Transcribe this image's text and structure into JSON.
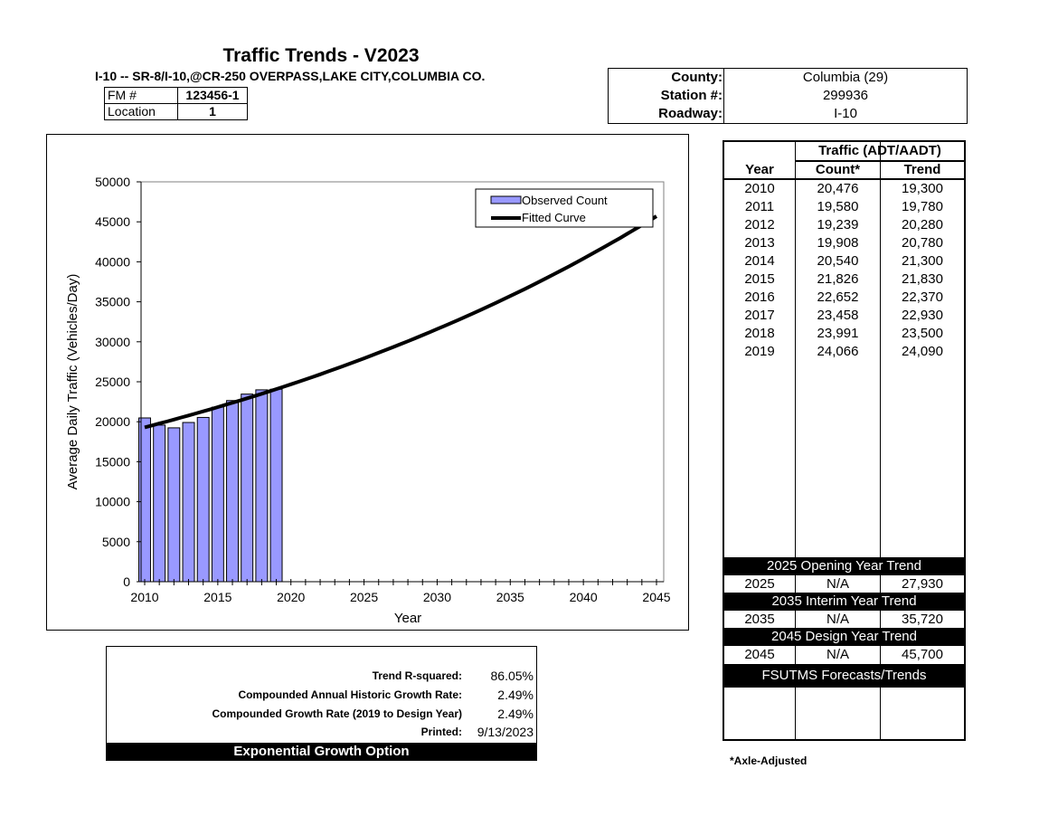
{
  "header": {
    "title": "Traffic Trends - V2023",
    "subtitle": "I-10 -- SR-8/I-10,@CR-250 OVERPASS,LAKE CITY,COLUMBIA CO.",
    "fm_label": "FM #",
    "fm_value": "123456-1",
    "location_label": "Location",
    "location_value": "1"
  },
  "info": {
    "county_label": "County:",
    "county_value": "Columbia (29)",
    "station_label": "Station #:",
    "station_value": "299936",
    "roadway_label": "Roadway:",
    "roadway_value": "I-10"
  },
  "chart_data": {
    "type": "bar",
    "xlabel": "Year",
    "ylabel": "Average Daily Traffic (Vehicles/Day)",
    "xlim": [
      2010,
      2045
    ],
    "ylim": [
      0,
      50000
    ],
    "x_ticks": [
      2010,
      2015,
      2020,
      2025,
      2030,
      2035,
      2040,
      2045
    ],
    "y_ticks": [
      0,
      5000,
      10000,
      15000,
      20000,
      25000,
      30000,
      35000,
      40000,
      45000,
      50000
    ],
    "legend_position": "top-right",
    "series": [
      {
        "name": "Observed Count",
        "type": "bar",
        "color": "#9999ff",
        "x": [
          2010,
          2011,
          2012,
          2013,
          2014,
          2015,
          2016,
          2017,
          2018,
          2019
        ],
        "values": [
          20476,
          19580,
          19239,
          19908,
          20540,
          21826,
          22652,
          23458,
          23991,
          24066
        ]
      },
      {
        "name": "Fitted Curve",
        "type": "line",
        "color": "#000000",
        "x": [
          2010,
          2015,
          2020,
          2025,
          2030,
          2035,
          2040,
          2045
        ],
        "values": [
          19300,
          21830,
          24680,
          27930,
          31590,
          35720,
          40400,
          45700
        ]
      }
    ]
  },
  "table": {
    "year_header": "Year",
    "traffic_header": "Traffic (ADT/AADT)",
    "count_header": "Count*",
    "trend_header": "Trend",
    "rows": [
      {
        "year": "2010",
        "count": "20,476",
        "trend": "19,300"
      },
      {
        "year": "2011",
        "count": "19,580",
        "trend": "19,780"
      },
      {
        "year": "2012",
        "count": "19,239",
        "trend": "20,280"
      },
      {
        "year": "2013",
        "count": "19,908",
        "trend": "20,780"
      },
      {
        "year": "2014",
        "count": "20,540",
        "trend": "21,300"
      },
      {
        "year": "2015",
        "count": "21,826",
        "trend": "21,830"
      },
      {
        "year": "2016",
        "count": "22,652",
        "trend": "22,370"
      },
      {
        "year": "2017",
        "count": "23,458",
        "trend": "22,930"
      },
      {
        "year": "2018",
        "count": "23,991",
        "trend": "23,500"
      },
      {
        "year": "2019",
        "count": "24,066",
        "trend": "24,090"
      }
    ],
    "opening_band": "2025 Opening Year Trend",
    "opening": {
      "year": "2025",
      "count": "N/A",
      "trend": "27,930"
    },
    "interim_band": "2035 Interim Year Trend",
    "interim": {
      "year": "2035",
      "count": "N/A",
      "trend": "35,720"
    },
    "design_band": "2045 Design Year Trend",
    "design": {
      "year": "2045",
      "count": "N/A",
      "trend": "45,700"
    },
    "fsutms_band": "FSUTMS Forecasts/Trends"
  },
  "summary": {
    "r2_label": "Trend R-squared:",
    "r2_value": "86.05%",
    "hist_label": "Compounded Annual Historic Growth Rate:",
    "hist_value": "2.49%",
    "design_label": "Compounded Growth Rate (2019 to Design Year)",
    "design_value": "2.49%",
    "printed_label": "Printed:",
    "printed_value": "9/13/2023",
    "option": "Exponential Growth Option"
  },
  "footnote": "*Axle-Adjusted"
}
